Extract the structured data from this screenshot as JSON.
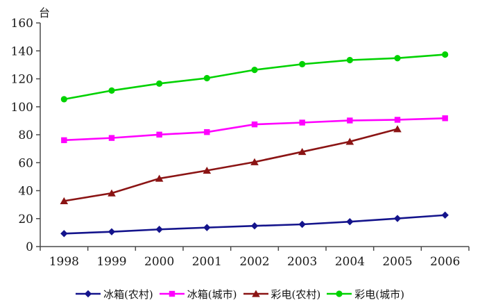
{
  "chart_data": {
    "type": "line",
    "title": "",
    "unit_label": "台",
    "xlabel": "",
    "ylabel": "台",
    "categories": [
      "1998",
      "1999",
      "2000",
      "2001",
      "2002",
      "2003",
      "2004",
      "2005",
      "2006"
    ],
    "series": [
      {
        "name": "冰箱(农村)",
        "marker": "diamond",
        "color": "#14148C",
        "values": [
          9.3,
          10.6,
          12.3,
          13.6,
          14.8,
          15.9,
          17.8,
          20.1,
          22.5
        ]
      },
      {
        "name": "冰箱(城市)",
        "marker": "square",
        "color": "#FF00FF",
        "values": [
          76.1,
          77.7,
          80.1,
          81.9,
          87.4,
          88.7,
          90.2,
          90.7,
          91.8
        ]
      },
      {
        "name": "彩电(农村)",
        "marker": "triangle",
        "color": "#8B1414",
        "values": [
          32.6,
          38.2,
          48.7,
          54.4,
          60.5,
          67.8,
          75.1,
          84.1,
          null
        ]
      },
      {
        "name": "彩电(城市)",
        "marker": "circle",
        "color": "#00D200",
        "values": [
          105.4,
          111.6,
          116.6,
          120.5,
          126.4,
          130.5,
          133.4,
          134.8,
          137.4
        ]
      }
    ],
    "ylim": [
      0,
      160
    ],
    "y_ticks": [
      0,
      20,
      40,
      60,
      80,
      100,
      120,
      140,
      160
    ],
    "grid": false,
    "legend_position": "bottom",
    "axis_color": "#4a4a4a",
    "text_color": "#1a1a1a"
  }
}
